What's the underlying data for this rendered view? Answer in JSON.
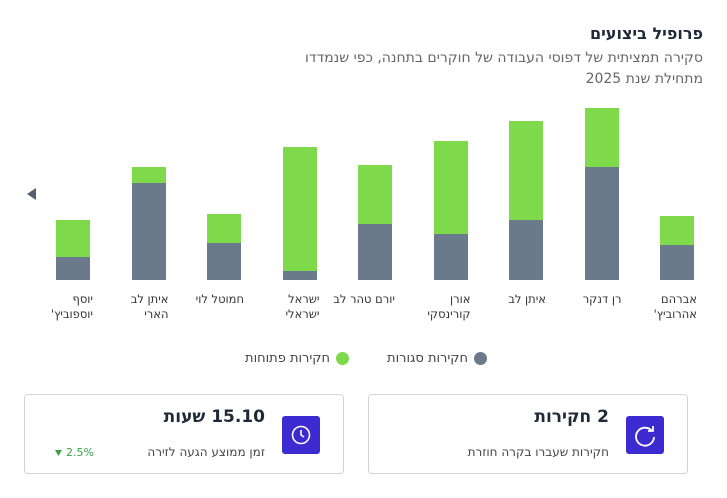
{
  "chart_data": {
    "type": "bar",
    "stacked": true,
    "title": "פרופיל ביצועים",
    "subtitle": "סקירה תמציתית של דפוסי העבודה של חוקרים בתחנה, כפי שנמדדו מתחילת שנת 2025",
    "categories": [
      "אברהם אהרוביץ'",
      "רן דנקר",
      "איתן לב",
      "אורן קורינסקי",
      "יורם טהר לב",
      "ישראל ישראלי",
      "חמוטל לוי",
      "איתן לב הארי",
      "יוסף יוספוביץ'"
    ],
    "series": [
      {
        "name": "חקירות סגורות",
        "color": "#6b7a8b",
        "values": [
          35,
          113,
          60,
          46,
          56,
          9,
          37,
          97,
          23
        ]
      },
      {
        "name": "חקירות פתוחות",
        "color": "#7ed94b",
        "values": [
          29,
          59,
          99,
          93,
          59,
          124,
          29,
          16,
          37
        ]
      }
    ],
    "ylim": [
      0,
      180
    ]
  },
  "cards": [
    {
      "value": "2 חקירות",
      "label": "חקירות שעברו בקרה חוזרת"
    },
    {
      "value": "15.10 שעות",
      "label": "זמן ממוצע הגעה לזירה",
      "change": "2.5%"
    }
  ]
}
